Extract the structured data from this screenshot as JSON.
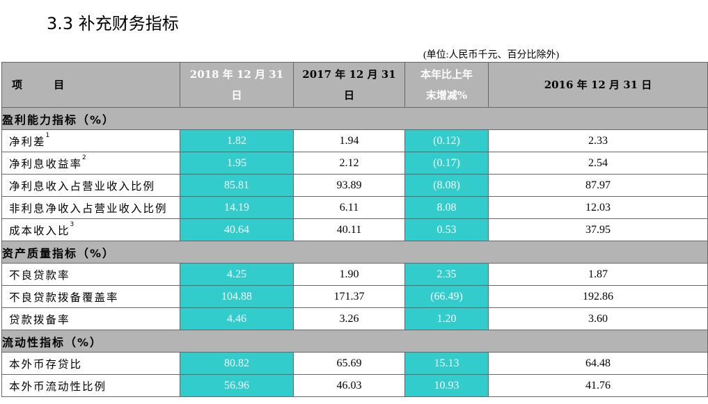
{
  "title": "3.3  补充财务指标",
  "unit_note": "(单位:人民币千元、百分比除外)",
  "colors": {
    "header_gray": "#b4b4b4",
    "highlight": "#33cccc"
  },
  "headers": {
    "item": "项  目",
    "col2018_line1": "2018 年 12 月 31",
    "col2018_line2": "日",
    "col2017_line1": "2017 年 12 月 31",
    "col2017_line2": "日",
    "change_line1": "本年比上年",
    "change_line2": "末增减%",
    "col2016": "2016 年 12 月 31 日"
  },
  "sections": [
    {
      "title": "盈利能力指标（%）",
      "rows": [
        {
          "label": "净利差",
          "note": "1",
          "v2018": "1.82",
          "v2017": "1.94",
          "change": "(0.12)",
          "v2016": "2.33"
        },
        {
          "label": "净利息收益率",
          "note": "2",
          "v2018": "1.95",
          "v2017": "2.12",
          "change": "(0.17)",
          "v2016": "2.54"
        },
        {
          "label": "净利息收入占营业收入比例",
          "note": "",
          "v2018": "85.81",
          "v2017": "93.89",
          "change": "(8.08)",
          "v2016": "87.97"
        },
        {
          "label": "非利息净收入占营业收入比例",
          "note": "",
          "v2018": "14.19",
          "v2017": "6.11",
          "change": "8.08",
          "v2016": "12.03"
        },
        {
          "label": "成本收入比",
          "note": "3",
          "v2018": "40.64",
          "v2017": "40.11",
          "change": "0.53",
          "v2016": "37.95"
        }
      ]
    },
    {
      "title": "资产质量指标（%）",
      "rows": [
        {
          "label": "不良贷款率",
          "note": "",
          "v2018": "4.25",
          "v2017": "1.90",
          "change": "2.35",
          "v2016": "1.87"
        },
        {
          "label": "不良贷款拨备覆盖率",
          "note": "",
          "v2018": "104.88",
          "v2017": "171.37",
          "change": "(66.49)",
          "v2016": "192.86"
        },
        {
          "label": "贷款拨备率",
          "note": "",
          "v2018": "4.46",
          "v2017": "3.26",
          "change": "1.20",
          "v2016": "3.60"
        }
      ]
    },
    {
      "title": "流动性指标（%）",
      "rows": [
        {
          "label": "本外币存贷比",
          "note": "",
          "v2018": "80.82",
          "v2017": "65.69",
          "change": "15.13",
          "v2016": "64.48"
        },
        {
          "label": "本外币流动性比例",
          "note": "",
          "v2018": "56.96",
          "v2017": "46.03",
          "change": "10.93",
          "v2016": "41.76"
        }
      ]
    }
  ]
}
